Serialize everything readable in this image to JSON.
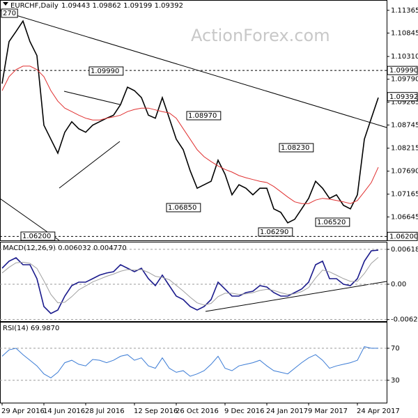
{
  "header": {
    "symbol": "EURCHF,Daily",
    "quote": "1.09443 1.09862 1.09199 1.09392"
  },
  "watermark": "ActionForex.com",
  "chart_data": [
    {
      "type": "line",
      "ylim": [
        1.0611,
        1.116
      ],
      "yticks": [
        1.11365,
        1.10845,
        {
          "value": 1.1031,
          "label": "1.10310"
        },
        {
          "value": 1.0979,
          "label": "1.09790"
        },
        1.09265,
        1.08745,
        1.08215,
        {
          "value": 1.0769,
          "label": "1.07690"
        },
        1.07165,
        1.06645
      ],
      "levels": [
        {
          "value": 1.0999,
          "label": "1.09990"
        },
        {
          "value": 1.062,
          "label": "1.06200"
        }
      ],
      "current_price": 1.09392,
      "annotations": [
        "270",
        "1.09990",
        "1.08970",
        "1.08230",
        "1.06850",
        "1.06290",
        "1.06520",
        "1.06200"
      ],
      "series": [
        {
          "color": "#000000",
          "values": [
            1.0969,
            1.1065,
            1.1088,
            1.1112,
            1.1065,
            1.1033,
            1.0874,
            1.0842,
            1.081,
            1.0858,
            1.0882,
            1.0866,
            1.0858,
            1.0874,
            1.0882,
            1.089,
            1.0897,
            1.0921,
            1.0961,
            1.0953,
            1.0937,
            1.0897,
            1.089,
            1.0937,
            1.089,
            1.0842,
            1.0818,
            1.077,
            1.073,
            1.0738,
            1.0746,
            1.0794,
            1.0762,
            1.0715,
            1.0738,
            1.073,
            1.0715,
            1.073,
            1.073,
            1.0683,
            1.0675,
            1.0651,
            1.0659,
            1.0683,
            1.0707,
            1.0746,
            1.073,
            1.0707,
            1.0715,
            1.0691,
            1.0683,
            1.0715,
            1.0842,
            1.089,
            1.0937
          ]
        },
        {
          "color": "#e03030",
          "values": [
            1.0953,
            1.0985,
            1.1001,
            1.1009,
            1.1009,
            1.1001,
            1.0985,
            1.0953,
            1.0929,
            1.0913,
            1.0905,
            1.0897,
            1.089,
            1.0886,
            1.0886,
            1.089,
            1.0893,
            1.0897,
            1.0905,
            1.091,
            1.0913,
            1.0913,
            1.0909,
            1.0905,
            1.0902,
            1.089,
            1.0866,
            1.0842,
            1.0818,
            1.0802,
            1.0791,
            1.0781,
            1.0773,
            1.0767,
            1.0759,
            1.0754,
            1.075,
            1.0746,
            1.0743,
            1.0734,
            1.0722,
            1.071,
            1.0699,
            1.0695,
            1.0695,
            1.0703,
            1.0707,
            1.0705,
            1.0702,
            1.0699,
            1.0695,
            1.0702,
            1.0722,
            1.0743,
            1.0778
          ]
        }
      ]
    },
    {
      "type": "line",
      "title": "MACD(12,26,9) 0.006032 0.004770",
      "ylim": [
        -0.00667,
        0.00753
      ],
      "yticks": [
        0.00618,
        {
          "value": 0,
          "label": "0.00"
        },
        -0.00626
      ],
      "grid": true,
      "series": [
        {
          "color": "#1a1a8c",
          "values": [
            0.00284,
            0.00408,
            0.00469,
            0.00346,
            0.00346,
            0.00099,
            -0.00395,
            -0.00519,
            -0.00457,
            -0.0021,
            -0.00025,
            0.00037,
            0.00037,
            0.00099,
            0.00161,
            0.00198,
            0.00222,
            0.00346,
            0.00284,
            0.00222,
            0.00284,
            0.00099,
            -0.00025,
            0.00161,
            -0.00025,
            -0.0021,
            -0.00272,
            -0.00395,
            -0.00457,
            -0.00395,
            -0.00272,
            0.00037,
            -0.00086,
            -0.0021,
            -0.0021,
            -0.00148,
            -0.00124,
            -0.00025,
            -0.00049,
            -0.00148,
            -0.0021,
            -0.0021,
            -0.00148,
            -0.00086,
            0.00037,
            0.00346,
            0.00408,
            0.00099,
            0.00099,
            0,
            -0.00025,
            0.00099,
            0.00408,
            0.00593,
            0.00603
          ]
        },
        {
          "color": "#a0a0a0",
          "values": [
            0.002,
            0.003,
            0.0038,
            0.0039,
            0.0037,
            0.0028,
            0.0006,
            -0.0018,
            -0.0033,
            -0.0032,
            -0.0022,
            -0.001,
            -0.0003,
            0.0004,
            0.0009,
            0.0014,
            0.0018,
            0.0023,
            0.0026,
            0.0025,
            0.0026,
            0.0021,
            0.0014,
            0.0012,
            0.0008,
            -0.0002,
            -0.0012,
            -0.0023,
            -0.0033,
            -0.0037,
            -0.0034,
            -0.0022,
            -0.0016,
            -0.0016,
            -0.0018,
            -0.0017,
            -0.0015,
            -0.0011,
            -0.0009,
            -0.0011,
            -0.0015,
            -0.0018,
            -0.0017,
            -0.0013,
            -0.0006,
            0.0011,
            0.0025,
            0.0022,
            0.0016,
            0.001,
            0.0005,
            0.0005,
            0.0019,
            0.0037,
            0.00477
          ]
        }
      ]
    },
    {
      "type": "line",
      "title": "RSI(14) 69.9870",
      "ylim": [
        2,
        103
      ],
      "yticks": [
        70,
        30
      ],
      "grid": true,
      "categories": [
        "29 Apr 2016",
        null,
        null,
        null,
        null,
        null,
        "14 Jun 2016",
        null,
        null,
        null,
        null,
        null,
        "28 Jul 2016",
        null,
        null,
        null,
        null,
        null,
        null,
        "12 Sep 2016",
        null,
        null,
        null,
        null,
        null,
        "26 Oct 2016",
        null,
        null,
        null,
        null,
        null,
        null,
        "9 Dec 2016",
        null,
        null,
        null,
        null,
        null,
        "24 Jan 2017",
        null,
        null,
        null,
        null,
        null,
        "9 Mar 2017",
        null,
        null,
        null,
        null,
        null,
        null,
        "24 Apr 2017",
        null,
        null,
        null
      ],
      "series": [
        {
          "color": "#3a7bd5",
          "values": [
            60,
            68,
            70,
            62,
            55,
            48,
            38,
            33,
            40,
            52,
            55,
            50,
            48,
            56,
            55,
            52,
            55,
            60,
            62,
            55,
            58,
            48,
            45,
            58,
            45,
            40,
            42,
            35,
            38,
            42,
            50,
            60,
            45,
            42,
            48,
            50,
            52,
            55,
            48,
            42,
            40,
            38,
            45,
            52,
            58,
            62,
            55,
            45,
            48,
            50,
            52,
            55,
            72,
            70,
            69.99
          ]
        }
      ]
    }
  ]
}
